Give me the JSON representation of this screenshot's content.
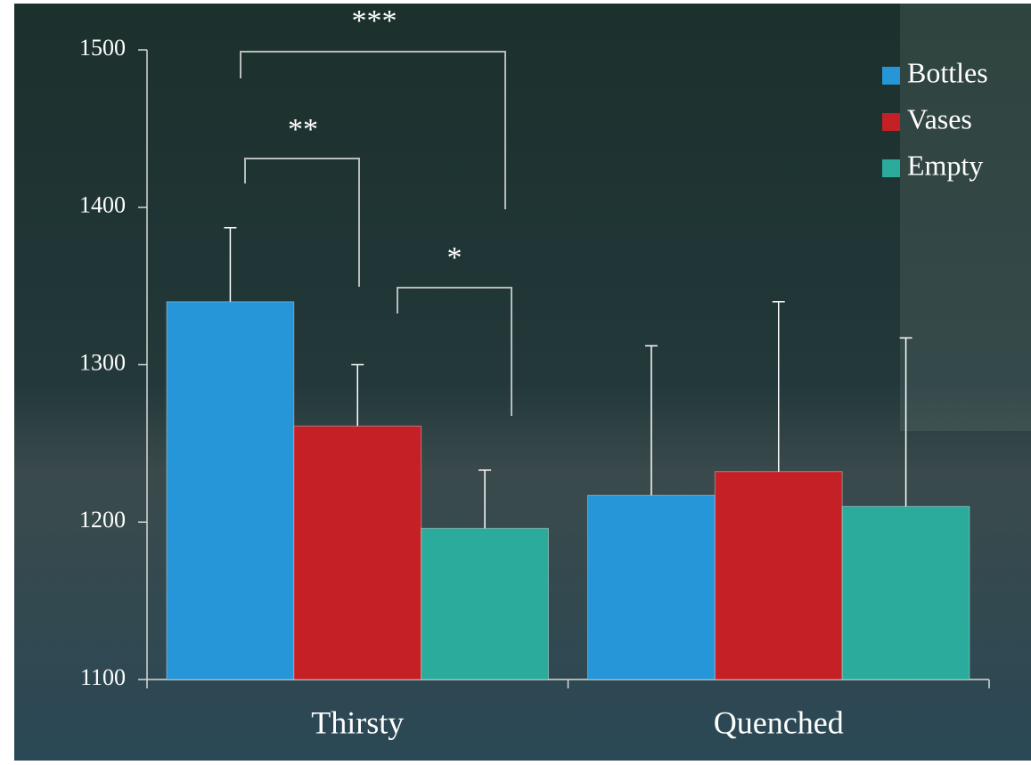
{
  "chart_data": {
    "type": "bar",
    "categories": [
      "Thirsty",
      "Quenched"
    ],
    "series": [
      {
        "name": "Bottles",
        "color": "#2696d8",
        "values": [
          1340,
          1217
        ],
        "errors": [
          47,
          95
        ]
      },
      {
        "name": "Vases",
        "color": "#c42026",
        "values": [
          1261,
          1232
        ],
        "errors": [
          39,
          108
        ]
      },
      {
        "name": "Empty",
        "color": "#2aab9b",
        "values": [
          1196,
          1210
        ],
        "errors": [
          37,
          107
        ]
      }
    ],
    "ylim": [
      1100,
      1500
    ],
    "yticks": [
      1100,
      1200,
      1300,
      1400,
      1500
    ],
    "legend": "top-right",
    "annotations": [
      {
        "text": "***"
      },
      {
        "text": "**"
      },
      {
        "text": "*"
      }
    ]
  }
}
